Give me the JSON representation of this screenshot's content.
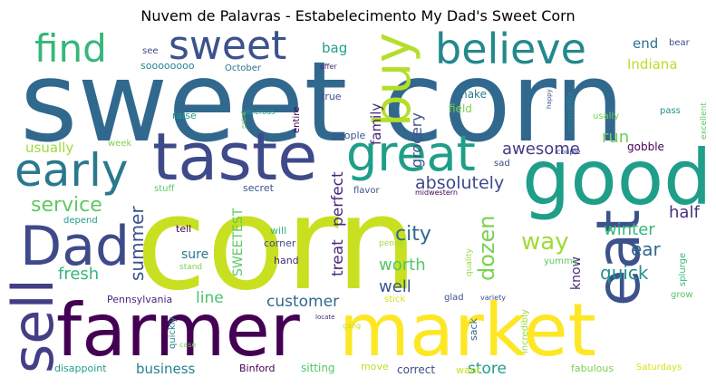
{
  "chart_data": {
    "type": "wordcloud",
    "title": "Nuvem de Palavras - Estabelecimento My Dad's Sweet Corn",
    "colormap": "viridis",
    "words": [
      {
        "text": "sweet corn",
        "weight": 100
      },
      {
        "text": "corn",
        "weight": 96
      },
      {
        "text": "farmer",
        "weight": 62
      },
      {
        "text": "market",
        "weight": 60
      },
      {
        "text": "good",
        "weight": 48
      },
      {
        "text": "taste",
        "weight": 44
      },
      {
        "text": "eat",
        "weight": 40
      },
      {
        "text": "Dad",
        "weight": 38
      },
      {
        "text": "sell",
        "weight": 38
      },
      {
        "text": "buy",
        "weight": 36
      },
      {
        "text": "great",
        "weight": 34
      },
      {
        "text": "early",
        "weight": 33
      },
      {
        "text": "believe",
        "weight": 29
      },
      {
        "text": "sweet",
        "weight": 28
      },
      {
        "text": "find",
        "weight": 27
      },
      {
        "text": "service",
        "weight": 16
      },
      {
        "text": "absolutely",
        "weight": 14
      },
      {
        "text": "awesome",
        "weight": 13
      },
      {
        "text": "dozen",
        "weight": 15
      },
      {
        "text": "summer",
        "weight": 14
      },
      {
        "text": "way",
        "weight": 17
      },
      {
        "text": "city",
        "weight": 15
      },
      {
        "text": "customer",
        "weight": 13
      },
      {
        "text": "treat",
        "weight": 13
      },
      {
        "text": "perfect",
        "weight": 13
      },
      {
        "text": "grocery",
        "weight": 12
      },
      {
        "text": "family",
        "weight": 11
      },
      {
        "text": "run",
        "weight": 13
      },
      {
        "text": "ear",
        "weight": 15
      },
      {
        "text": "quick",
        "weight": 14
      },
      {
        "text": "winter",
        "weight": 13
      },
      {
        "text": "half",
        "weight": 13
      },
      {
        "text": "well",
        "weight": 14
      },
      {
        "text": "worth",
        "weight": 13
      },
      {
        "text": "fresh",
        "weight": 13
      },
      {
        "text": "line",
        "weight": 12
      },
      {
        "text": "store",
        "weight": 13
      },
      {
        "text": "business",
        "weight": 12
      },
      {
        "text": "usually",
        "weight": 12
      },
      {
        "text": "Indiana",
        "weight": 12
      },
      {
        "text": "end",
        "weight": 12
      },
      {
        "text": "bag",
        "weight": 12
      },
      {
        "text": "SWEETEST",
        "weight": 11
      },
      {
        "text": "know",
        "weight": 11
      },
      {
        "text": "sure",
        "weight": 11
      },
      {
        "text": "sitting",
        "weight": 9
      },
      {
        "text": "correct",
        "weight": 9
      },
      {
        "text": "fabulous",
        "weight": 9
      },
      {
        "text": "disappoint",
        "weight": 9
      },
      {
        "text": "Binford",
        "weight": 9
      },
      {
        "text": "move",
        "weight": 8
      },
      {
        "text": "want",
        "weight": 8
      },
      {
        "text": "Saturdays",
        "weight": 8
      },
      {
        "text": "Pennsylvania",
        "weight": 8
      },
      {
        "text": "quickly",
        "weight": 8
      },
      {
        "text": "case",
        "weight": 6
      },
      {
        "text": "gang",
        "weight": 6
      },
      {
        "text": "incredibly",
        "weight": 8
      },
      {
        "text": "sack",
        "weight": 8
      },
      {
        "text": "glad",
        "weight": 7
      },
      {
        "text": "variety",
        "weight": 6
      },
      {
        "text": "stick",
        "weight": 7
      },
      {
        "text": "quality",
        "weight": 7
      },
      {
        "text": "yummy",
        "weight": 8
      },
      {
        "text": "penny",
        "weight": 7
      },
      {
        "text": "grow",
        "weight": 7
      },
      {
        "text": "splurge",
        "weight": 7
      },
      {
        "text": "hand",
        "weight": 8
      },
      {
        "text": "corner",
        "weight": 8
      },
      {
        "text": "will",
        "weight": 9
      },
      {
        "text": "tell",
        "weight": 9
      },
      {
        "text": "stand",
        "weight": 7
      },
      {
        "text": "depend",
        "weight": 8
      },
      {
        "text": "stuff",
        "weight": 8
      },
      {
        "text": "secret",
        "weight": 9
      },
      {
        "text": "flavor",
        "weight": 8
      },
      {
        "text": "midwestern",
        "weight": 6
      },
      {
        "text": "sad",
        "weight": 7
      },
      {
        "text": "couple",
        "weight": 6
      },
      {
        "text": "gobble",
        "weight": 8
      },
      {
        "text": "excellent",
        "weight": 7
      },
      {
        "text": "usally",
        "weight": 7
      },
      {
        "text": "pass",
        "weight": 7
      },
      {
        "text": "happy",
        "weight": 6
      },
      {
        "text": "incredible",
        "weight": 7
      },
      {
        "text": "field",
        "weight": 9
      },
      {
        "text": "make",
        "weight": 8
      },
      {
        "text": "bear",
        "weight": 8
      },
      {
        "text": "people",
        "weight": 8
      },
      {
        "text": "entire",
        "weight": 8
      },
      {
        "text": "generous",
        "weight": 6
      },
      {
        "text": "extra",
        "weight": 6
      },
      {
        "text": "raise",
        "weight": 8
      },
      {
        "text": "true",
        "weight": 8
      },
      {
        "text": "offer",
        "weight": 6
      },
      {
        "text": "October",
        "weight": 8
      },
      {
        "text": "soooooooo",
        "weight": 8
      },
      {
        "text": "see",
        "weight": 8
      },
      {
        "text": "week",
        "weight": 7
      },
      {
        "text": "locate",
        "weight": 6
      }
    ]
  }
}
